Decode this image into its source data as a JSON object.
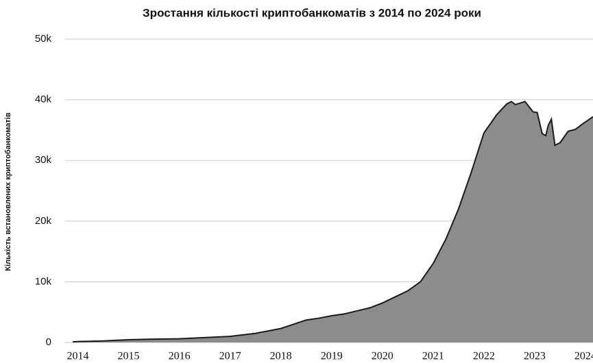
{
  "chart_data": {
    "type": "area",
    "title": "Зростання кількості криптобанкоматів з 2014 по 2024 роки",
    "y_label": "Кількість встановлених криптобанкоматів",
    "x": [
      2013.9,
      2014.0,
      2014.5,
      2015.0,
      2015.5,
      2016.0,
      2016.5,
      2017.0,
      2017.5,
      2018.0,
      2018.25,
      2018.5,
      2018.75,
      2019.0,
      2019.25,
      2019.5,
      2019.75,
      2020.0,
      2020.25,
      2020.5,
      2020.75,
      2021.0,
      2021.25,
      2021.5,
      2021.75,
      2022.0,
      2022.25,
      2022.45,
      2022.54,
      2022.62,
      2022.81,
      2022.97,
      2023.05,
      2023.15,
      2023.22,
      2023.27,
      2023.33,
      2023.4,
      2023.5,
      2023.66,
      2023.8,
      2023.96,
      2024.15
    ],
    "values": [
      100,
      150,
      250,
      450,
      550,
      600,
      800,
      1000,
      1500,
      2300,
      3000,
      3700,
      4000,
      4400,
      4700,
      5200,
      5700,
      6500,
      7500,
      8500,
      10000,
      13000,
      17000,
      22000,
      28000,
      34500,
      37500,
      39300,
      39700,
      39200,
      39700,
      38000,
      37900,
      34400,
      34100,
      35800,
      36800,
      32500,
      32900,
      34800,
      35100,
      36100,
      37200
    ],
    "color": "#8c8c8c",
    "line_color": "#1a1a1a",
    "xlim": [
      2013.75,
      2024.15
    ],
    "xticks": [
      2014,
      2015,
      2016,
      2017,
      2018,
      2019,
      2020,
      2021,
      2022,
      2023,
      2024
    ],
    "ylim": [
      0,
      50000
    ],
    "yticks": [
      0,
      {
        "value": 10000,
        "label": "10k"
      },
      {
        "value": 20000,
        "label": "20k"
      },
      {
        "value": 30000,
        "label": "30k"
      },
      {
        "value": 40000,
        "label": "40k"
      },
      {
        "value": 50000,
        "label": "50k"
      }
    ],
    "grid": true
  }
}
